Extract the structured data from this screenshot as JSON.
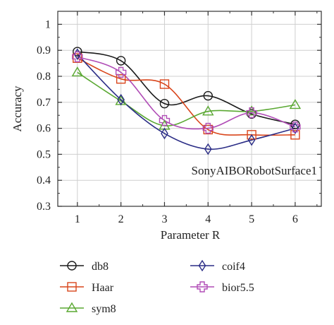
{
  "chart_data": {
    "type": "line",
    "xlabel": "Parameter R",
    "ylabel": "Accuracy",
    "x": [
      1,
      2,
      3,
      4,
      5,
      6
    ],
    "xlim": [
      0.55,
      6.6
    ],
    "ylim": [
      0.3,
      1.05
    ],
    "yticks": [
      0.3,
      0.4,
      0.5,
      0.6,
      0.7,
      0.8,
      0.9,
      1
    ],
    "ytick_labels": [
      "0.3",
      "0.4",
      "0.5",
      "0.6",
      "0.7",
      "0.8",
      "0.9",
      "1"
    ],
    "xtick_labels": [
      "1",
      "2",
      "3",
      "4",
      "5",
      "6"
    ],
    "grid": true,
    "legend_position": "below",
    "annotation": "SonyAIBORobotSurface1",
    "series": [
      {
        "name": "db8",
        "values": [
          0.895,
          0.86,
          0.695,
          0.725,
          0.655,
          0.615
        ],
        "color": "#1a1a1a",
        "marker": "circle"
      },
      {
        "name": "Haar",
        "values": [
          0.87,
          0.79,
          0.77,
          0.595,
          0.575,
          0.575
        ],
        "color": "#d9461c",
        "marker": "square"
      },
      {
        "name": "sym8",
        "values": [
          0.815,
          0.705,
          0.61,
          0.665,
          0.665,
          0.69
        ],
        "color": "#5aa832",
        "marker": "triangle"
      },
      {
        "name": "coif4",
        "values": [
          0.885,
          0.71,
          0.58,
          0.52,
          0.555,
          0.6
        ],
        "color": "#2b2d86",
        "marker": "diamond"
      },
      {
        "name": "bior5.5",
        "values": [
          0.875,
          0.815,
          0.63,
          0.6,
          0.66,
          0.605
        ],
        "color": "#b04cb6",
        "marker": "cross"
      }
    ]
  }
}
